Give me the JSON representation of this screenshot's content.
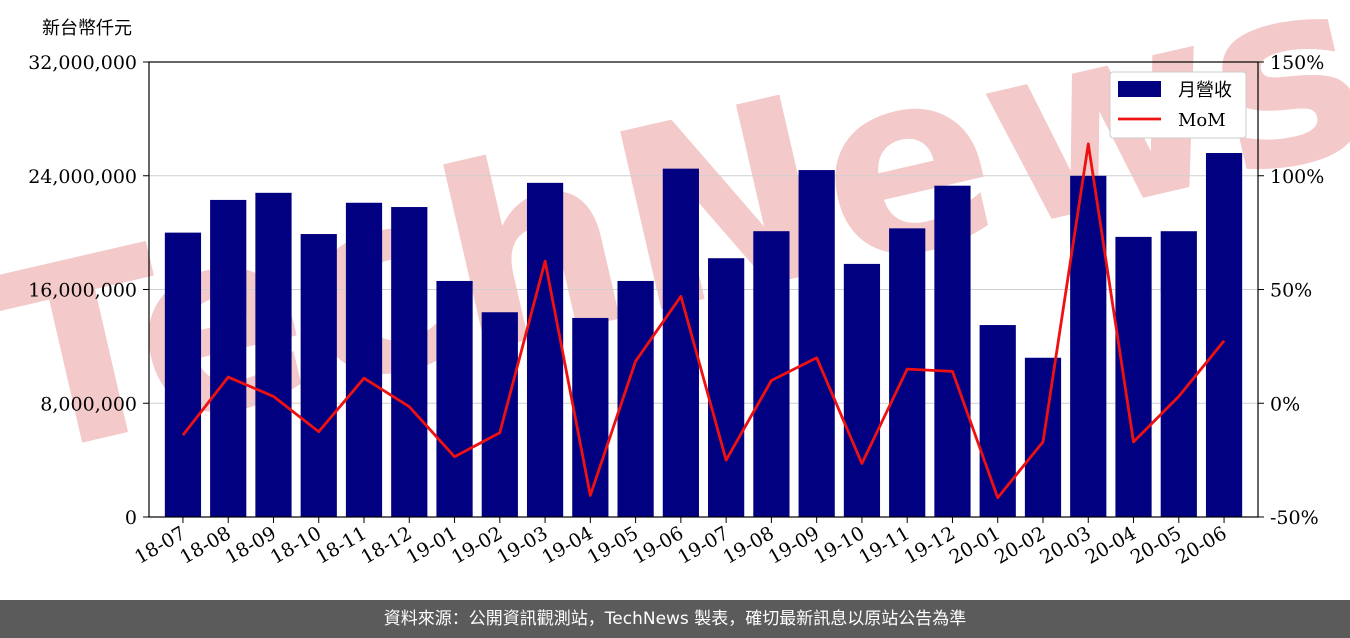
{
  "unit_label": "新台幣仟元",
  "footer_text": "資料來源：公開資訊觀測站，TechNews 製表，確切最新訊息以原站公告為準",
  "watermark": "TechNews",
  "colors": {
    "bar": "#000080",
    "line": "#ee1111",
    "grid": "#d0d0d0",
    "footer_bg": "#5b5b5b",
    "watermark": "#f3c9c9"
  },
  "chart_data": {
    "type": "bar",
    "categories": [
      "18-07",
      "18-08",
      "18-09",
      "18-10",
      "18-11",
      "18-12",
      "19-01",
      "19-02",
      "19-03",
      "19-04",
      "19-05",
      "19-06",
      "19-07",
      "19-08",
      "19-09",
      "19-10",
      "19-11",
      "19-12",
      "20-01",
      "20-02",
      "20-03",
      "20-04",
      "20-05",
      "20-06"
    ],
    "series": [
      {
        "name": "月營收",
        "type": "bar",
        "axis": "left",
        "values": [
          20000000,
          22300000,
          22800000,
          19900000,
          22100000,
          21800000,
          16600000,
          14400000,
          23500000,
          14000000,
          16600000,
          24500000,
          18200000,
          20100000,
          24400000,
          17800000,
          20300000,
          23300000,
          13500000,
          11200000,
          24000000,
          19700000,
          20100000,
          25600000
        ]
      },
      {
        "name": "MoM",
        "type": "line",
        "axis": "right",
        "values": [
          -14,
          11.5,
          3,
          -12.5,
          11,
          -1.5,
          -23.5,
          -13,
          62.5,
          -40.5,
          18.5,
          47,
          -25,
          10,
          20,
          -26.5,
          15,
          14,
          -41.5,
          -17,
          114,
          -17,
          3,
          27.5
        ]
      }
    ],
    "y_left": {
      "min": 0,
      "max": 32000000,
      "ticks": [
        0,
        8000000,
        16000000,
        24000000,
        32000000
      ],
      "tick_labels": [
        "0",
        "8,000,000",
        "16,000,000",
        "24,000,000",
        "32,000,000"
      ]
    },
    "y_right": {
      "min": -50,
      "max": 150,
      "ticks": [
        -50,
        0,
        50,
        100,
        150
      ],
      "tick_labels": [
        "-50%",
        "0%",
        "50%",
        "100%",
        "150%"
      ]
    },
    "grid": "horizontal",
    "legend_position": "top-right"
  }
}
